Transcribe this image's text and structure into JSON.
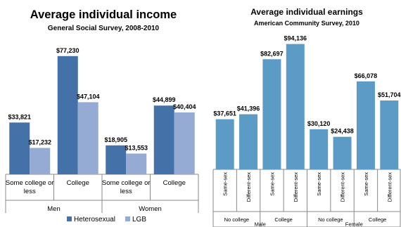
{
  "chart_data": [
    {
      "type": "bar",
      "title": "Average individual income",
      "subtitle": "General Social Survey, 2008-2010",
      "categories": [
        "Some college or less",
        "College",
        "Some college or less",
        "College"
      ],
      "groups": [
        "Men",
        "Women"
      ],
      "series": [
        {
          "name": "Heterosexual",
          "color": "#4472a8",
          "values": [
            33821,
            77230,
            18905,
            44899
          ],
          "labels": [
            "$33,821",
            "$77,230",
            "$18,905",
            "$44,899"
          ]
        },
        {
          "name": "LGB",
          "color": "#95abd4",
          "values": [
            17232,
            47104,
            13553,
            40404
          ],
          "labels": [
            "$17,232",
            "$47,104",
            "$13,553",
            "$40,404"
          ]
        }
      ],
      "ylim": [
        0,
        90000
      ],
      "grid": false,
      "legend_position": "bottom"
    },
    {
      "type": "bar",
      "title": "Average individual earnings",
      "subtitle": "American Community Survey, 2010",
      "color": "#5b9bc6",
      "categories": [
        "Same-sex",
        "Different-sex",
        "Same-sex",
        "Different-sex",
        "Same-sex",
        "Different-sex",
        "Same-sex",
        "Different-sex"
      ],
      "subgroups": [
        "No college",
        "College",
        "No college",
        "College"
      ],
      "groups": [
        "Male",
        "Female"
      ],
      "values": [
        37651,
        41396,
        82697,
        94136,
        30120,
        24438,
        66078,
        51704
      ],
      "labels": [
        "$37,651",
        "$41,396",
        "$82,697",
        "$94,136",
        "$30,120",
        "$24,438",
        "$66,078",
        "$51,704"
      ],
      "ylim": [
        0,
        105000
      ],
      "grid": false
    }
  ]
}
